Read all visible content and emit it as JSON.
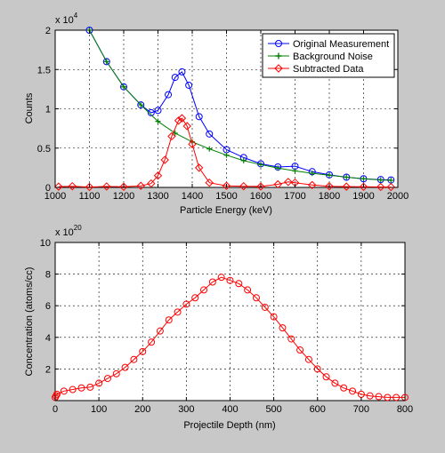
{
  "chart_data": [
    {
      "type": "line",
      "xlabel": "Particle Energy (keV)",
      "ylabel": "Counts",
      "exponent_label": "x 10",
      "exponent_power": "4",
      "xlim": [
        1000,
        2000
      ],
      "ylim": [
        0,
        20000
      ],
      "xticks": [
        1000,
        1100,
        1200,
        1300,
        1400,
        1500,
        1600,
        1700,
        1800,
        1900,
        2000
      ],
      "yticks": [
        0,
        5000,
        10000,
        15000,
        20000
      ],
      "xtick_labels": [
        "1000",
        "1100",
        "1200",
        "1300",
        "1400",
        "1500",
        "1600",
        "1700",
        "1800",
        "1900",
        "2000"
      ],
      "ytick_labels": [
        "0",
        "0.5",
        "1",
        "1.5",
        "2"
      ],
      "grid": true,
      "legend_position": "top-right",
      "series": [
        {
          "name": "Original Measurement",
          "color": "#0000ff",
          "marker": "circle",
          "x": [
            1100,
            1150,
            1200,
            1250,
            1280,
            1300,
            1330,
            1350,
            1370,
            1390,
            1420,
            1450,
            1500,
            1550,
            1600,
            1650,
            1700,
            1750,
            1800,
            1850,
            1900,
            1950,
            1980
          ],
          "y": [
            20000,
            16000,
            12800,
            10500,
            9500,
            9800,
            11800,
            14000,
            14700,
            13000,
            9000,
            6800,
            4800,
            3800,
            3000,
            2600,
            2700,
            2000,
            1600,
            1300,
            1100,
            1000,
            950
          ]
        },
        {
          "name": "Background Noise",
          "color": "#008000",
          "marker": "plus",
          "x": [
            1100,
            1150,
            1200,
            1250,
            1300,
            1350,
            1400,
            1450,
            1500,
            1550,
            1600,
            1650,
            1700,
            1750,
            1800,
            1850,
            1900,
            1950,
            1980
          ],
          "y": [
            20000,
            16000,
            12800,
            10500,
            8400,
            6900,
            5800,
            4900,
            4100,
            3400,
            2900,
            2450,
            2100,
            1800,
            1550,
            1300,
            1100,
            950,
            900
          ]
        },
        {
          "name": "Subtracted Data",
          "color": "#ff0000",
          "marker": "diamond",
          "x": [
            1010,
            1050,
            1100,
            1150,
            1200,
            1250,
            1280,
            1300,
            1320,
            1340,
            1360,
            1370,
            1385,
            1400,
            1420,
            1450,
            1500,
            1550,
            1600,
            1650,
            1680,
            1700,
            1750,
            1800,
            1850,
            1900,
            1950,
            1980
          ],
          "y": [
            100,
            150,
            50,
            120,
            80,
            200,
            500,
            1500,
            3500,
            6500,
            8500,
            8800,
            7800,
            5500,
            2500,
            600,
            200,
            150,
            120,
            400,
            700,
            600,
            300,
            150,
            100,
            80,
            60,
            50
          ]
        }
      ]
    },
    {
      "type": "line",
      "xlabel": "Projectile Depth (nm)",
      "ylabel": "Concentration (atoms/cc)",
      "exponent_label": "x 10",
      "exponent_power": "20",
      "xlim": [
        0,
        800
      ],
      "ylim": [
        0,
        10
      ],
      "xticks": [
        0,
        100,
        200,
        300,
        400,
        500,
        600,
        700,
        800
      ],
      "yticks": [
        0,
        2,
        4,
        6,
        8,
        10
      ],
      "xtick_labels": [
        "0",
        "100",
        "200",
        "300",
        "400",
        "500",
        "600",
        "700",
        "800"
      ],
      "ytick_labels": [
        "",
        "2",
        "4",
        "6",
        "8",
        "10"
      ],
      "grid": true,
      "series": [
        {
          "color": "#ff0000",
          "marker": "circle",
          "x": [
            0,
            2,
            4,
            20,
            40,
            60,
            80,
            100,
            120,
            140,
            160,
            180,
            200,
            220,
            240,
            260,
            280,
            300,
            320,
            340,
            360,
            380,
            400,
            420,
            440,
            460,
            480,
            500,
            520,
            540,
            560,
            580,
            600,
            620,
            640,
            660,
            680,
            700,
            720,
            740,
            760,
            780,
            800
          ],
          "y": [
            0.2,
            0.3,
            0.4,
            0.6,
            0.7,
            0.8,
            0.85,
            1.1,
            1.4,
            1.7,
            2.1,
            2.6,
            3.1,
            3.7,
            4.4,
            5.1,
            5.6,
            6.1,
            6.5,
            7.0,
            7.5,
            7.8,
            7.6,
            7.4,
            7.0,
            6.5,
            5.9,
            5.3,
            4.6,
            3.9,
            3.2,
            2.6,
            2.0,
            1.5,
            1.1,
            0.8,
            0.6,
            0.4,
            0.3,
            0.25,
            0.2,
            0.2,
            0.2
          ]
        }
      ]
    }
  ]
}
